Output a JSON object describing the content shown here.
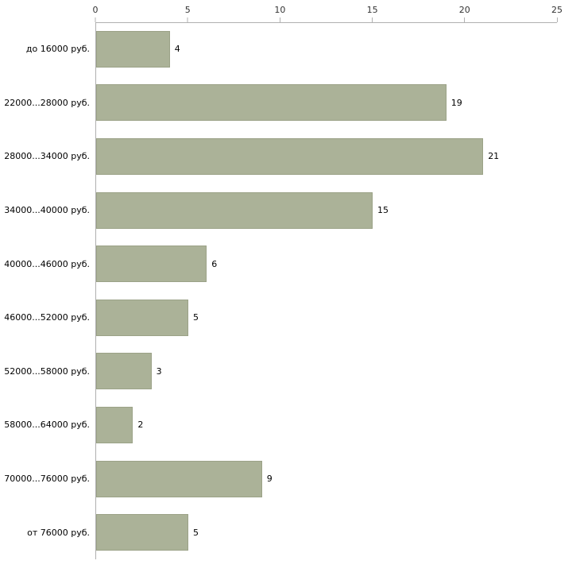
{
  "chart_data": {
    "type": "bar",
    "orientation": "horizontal",
    "title": "",
    "xlabel": "",
    "ylabel": "",
    "categories": [
      "до 16000 руб.",
      "22000...28000 руб.",
      "28000...34000 руб.",
      "34000...40000 руб.",
      "40000...46000 руб.",
      "46000...52000 руб.",
      "52000...58000 руб.",
      "58000...64000 руб.",
      "70000...76000 руб.",
      "от 76000 руб."
    ],
    "values": [
      4,
      19,
      21,
      15,
      6,
      5,
      3,
      2,
      9,
      5
    ],
    "x_ticks": [
      0,
      5,
      10,
      15,
      20,
      25
    ],
    "xlim": [
      0,
      25
    ],
    "grid": false,
    "legend_position": "none",
    "colors": {
      "bar_fill": "#abb298",
      "bar_border": "#9ba287",
      "axis": "#b0b0b0",
      "text": "#000000"
    }
  }
}
